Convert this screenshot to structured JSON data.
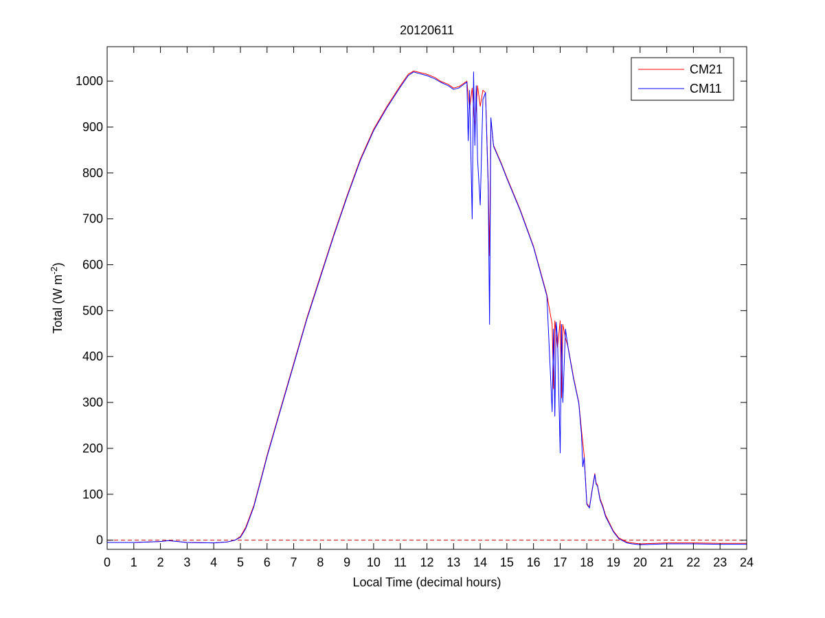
{
  "chart_data": {
    "type": "line",
    "title": "20120611",
    "xlabel": "Local Time (decimal hours)",
    "ylabel": {
      "prefix": "Total (W m",
      "superscript": "-2",
      "suffix": ")"
    },
    "xlim": [
      0,
      24
    ],
    "ylim": [
      -20,
      1075
    ],
    "xticks": [
      0,
      1,
      2,
      3,
      4,
      5,
      6,
      7,
      8,
      9,
      10,
      11,
      12,
      13,
      14,
      15,
      16,
      17,
      18,
      19,
      20,
      21,
      22,
      23,
      24
    ],
    "yticks": [
      0,
      100,
      200,
      300,
      400,
      500,
      600,
      700,
      800,
      900,
      1000
    ],
    "grid": false,
    "legend_position": "top-right",
    "reference_line": {
      "y": 0,
      "color": "#c00000",
      "style": "dashed"
    },
    "series": [
      {
        "name": "CM21",
        "color": "#ff0000",
        "x": [
          0,
          1,
          2,
          2.3,
          3,
          4,
          4.5,
          4.8,
          5,
          5.2,
          5.5,
          5.8,
          6,
          6.5,
          7,
          7.5,
          8,
          8.5,
          9,
          9.5,
          10,
          10.5,
          11,
          11.3,
          11.5,
          12,
          12.3,
          12.5,
          12.8,
          13,
          13.2,
          13.5,
          13.6,
          13.7,
          13.8,
          13.9,
          14,
          14.1,
          14.2,
          14.3,
          14.35,
          14.4,
          14.5,
          14.8,
          15,
          15.5,
          16,
          16.5,
          16.7,
          16.75,
          16.8,
          16.9,
          17,
          17.05,
          17.1,
          17.2,
          17.3,
          17.5,
          17.7,
          17.8,
          17.9,
          18,
          18.1,
          18.2,
          18.3,
          18.35,
          18.4,
          18.5,
          18.6,
          18.7,
          19,
          19.2,
          19.5,
          19.7,
          20,
          21,
          22,
          23,
          24
        ],
        "y": [
          -5,
          -5,
          -3,
          -1,
          -5,
          -6,
          -4,
          0,
          8,
          28,
          75,
          140,
          185,
          285,
          385,
          485,
          575,
          665,
          750,
          830,
          895,
          945,
          990,
          1015,
          1022,
          1015,
          1008,
          1000,
          993,
          985,
          988,
          1000,
          940,
          985,
          900,
          990,
          945,
          980,
          975,
          780,
          620,
          915,
          860,
          820,
          790,
          720,
          640,
          535,
          470,
          330,
          478,
          420,
          478,
          310,
          470,
          440,
          420,
          355,
          300,
          240,
          185,
          80,
          72,
          110,
          145,
          125,
          120,
          90,
          75,
          55,
          20,
          5,
          -4,
          -6,
          -8,
          -6,
          -6,
          -7,
          -7
        ]
      },
      {
        "name": "CM11",
        "color": "#0000ff",
        "x": [
          0,
          1,
          2,
          2.3,
          3,
          4,
          4.5,
          4.8,
          5,
          5.2,
          5.5,
          5.8,
          6,
          6.5,
          7,
          7.5,
          8,
          8.5,
          9,
          9.5,
          10,
          10.5,
          11,
          11.3,
          11.5,
          12,
          12.3,
          12.5,
          12.8,
          13,
          13.2,
          13.5,
          13.55,
          13.6,
          13.7,
          13.75,
          13.8,
          13.85,
          13.9,
          14,
          14.1,
          14.2,
          14.3,
          14.35,
          14.4,
          14.5,
          14.8,
          15,
          15.5,
          16,
          16.5,
          16.7,
          16.75,
          16.8,
          16.85,
          16.9,
          17,
          17.05,
          17.1,
          17.2,
          17.3,
          17.5,
          17.7,
          17.8,
          17.85,
          17.9,
          18,
          18.1,
          18.2,
          18.3,
          18.35,
          18.4,
          18.5,
          18.6,
          18.7,
          19,
          19.2,
          19.5,
          19.7,
          20,
          21,
          22,
          23,
          24
        ],
        "y": [
          -5,
          -5,
          -3,
          -1,
          -5,
          -6,
          -4,
          0,
          6,
          25,
          72,
          137,
          182,
          282,
          382,
          482,
          572,
          662,
          747,
          827,
          892,
          942,
          987,
          1012,
          1020,
          1012,
          1005,
          998,
          990,
          982,
          985,
          998,
          870,
          980,
          700,
          1020,
          860,
          990,
          830,
          730,
          960,
          975,
          770,
          470,
          920,
          858,
          818,
          788,
          718,
          638,
          532,
          280,
          460,
          270,
          475,
          440,
          190,
          470,
          300,
          460,
          418,
          352,
          298,
          230,
          160,
          180,
          78,
          70,
          108,
          143,
          122,
          118,
          87,
          72,
          52,
          18,
          3,
          -6,
          -8,
          -10,
          -8,
          -8,
          -9,
          -9
        ]
      }
    ]
  }
}
